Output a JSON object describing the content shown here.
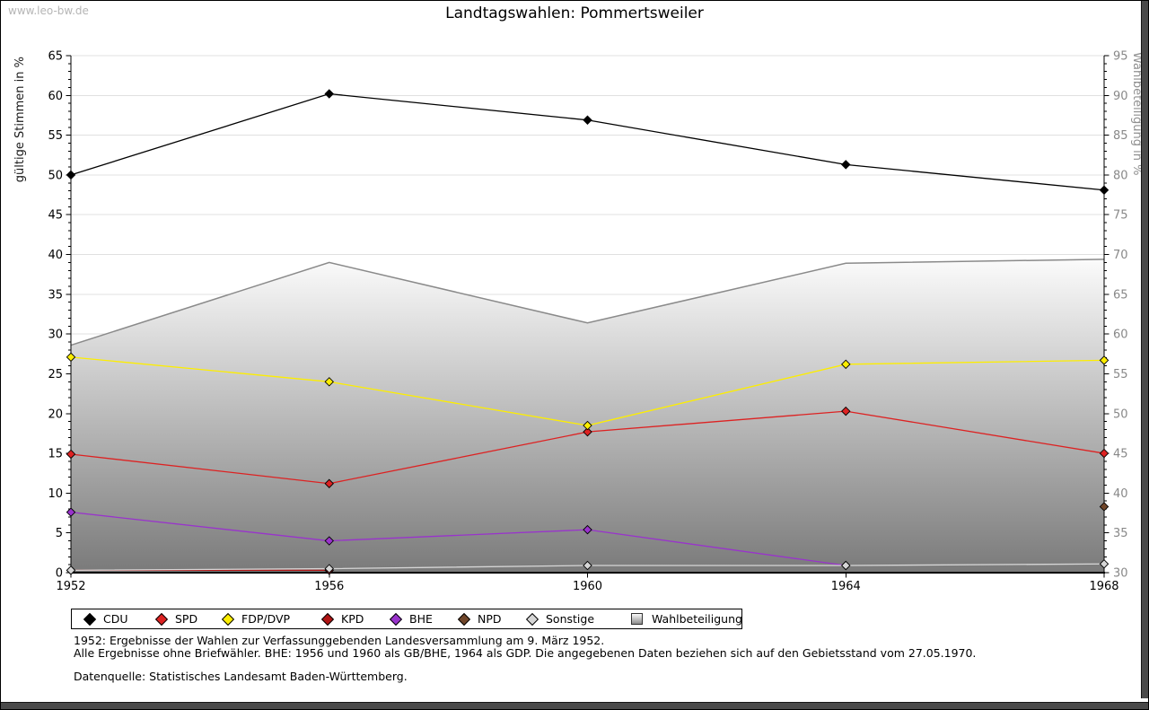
{
  "watermark": "www.leo-bw.de",
  "title": "Landtagswahlen: Pommertsweiler",
  "footer": {
    "line1": "1952: Ergebnisse der Wahlen zur Verfassunggebenden Landesversammlung am 9. März 1952.",
    "line2": "Alle Ergebnisse ohne Briefwähler. BHE: 1956 und 1960 als GB/BHE, 1964 als GDP. Die angegebenen Daten beziehen sich auf den Gebietsstand vom 27.05.1970.",
    "line3": "Datenquelle: Statistisches Landesamt Baden-Württemberg."
  },
  "chart_data": {
    "type": "line",
    "title": "Landtagswahlen: Pommertsweiler",
    "x": [
      "1952",
      "1956",
      "1960",
      "1964",
      "1968"
    ],
    "ylabel_left": "gültige Stimmen in %",
    "ylabel_right": "Wahlbeteiligung in %",
    "ylim_left": [
      0,
      65
    ],
    "ylim_right": [
      30,
      95
    ],
    "ytick_step": 5,
    "grid": true,
    "grid_color": "#e0e0e0",
    "right_axis_text_color": "#888888",
    "legend_position": "bottom",
    "series": [
      {
        "name": "CDU",
        "axis": "left",
        "style": "line",
        "marker": "diamond",
        "color": "#000000",
        "values": [
          50.0,
          60.2,
          56.9,
          51.3,
          48.1
        ]
      },
      {
        "name": "SPD",
        "axis": "left",
        "style": "line",
        "marker": "diamond",
        "color": "#dd2222",
        "values": [
          14.9,
          11.2,
          17.7,
          20.3,
          15.0
        ]
      },
      {
        "name": "FDP/DVP",
        "axis": "left",
        "style": "line",
        "marker": "diamond",
        "color": "#fdee00",
        "values": [
          27.1,
          24.0,
          18.5,
          26.2,
          26.7
        ]
      },
      {
        "name": "KPD",
        "axis": "left",
        "style": "line",
        "marker": "diamond",
        "color": "#b01414",
        "values": [
          0.3,
          0.3,
          null,
          null,
          null
        ]
      },
      {
        "name": "BHE",
        "axis": "left",
        "style": "line",
        "marker": "diamond",
        "color": "#9933cc",
        "values": [
          7.6,
          4.0,
          5.4,
          0.9,
          null
        ]
      },
      {
        "name": "NPD",
        "axis": "left",
        "style": "line",
        "marker": "diamond",
        "color": "#70462a",
        "values": [
          null,
          null,
          null,
          null,
          8.3
        ]
      },
      {
        "name": "Sonstige",
        "axis": "left",
        "style": "line",
        "marker": "diamond",
        "color": "#d6d6d6",
        "values": [
          0.3,
          0.5,
          0.9,
          0.9,
          1.1
        ]
      },
      {
        "name": "Wahlbeteiligung",
        "axis": "right",
        "style": "area",
        "color": "#8a8a8a",
        "fill_top": "#fbfbfb",
        "fill_bottom": "#7a7a7a",
        "values": [
          58.6,
          69.0,
          61.4,
          68.9,
          69.4
        ]
      }
    ]
  }
}
